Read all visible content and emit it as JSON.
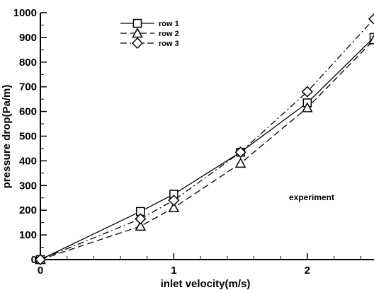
{
  "chart_data": {
    "type": "line",
    "xlabel": "inlet velocity(m/s)",
    "ylabel": "pressure drop(Pa/m)",
    "xlim": [
      0,
      2.5
    ],
    "ylim": [
      0,
      1000
    ],
    "x_ticks": [
      0,
      1,
      2
    ],
    "y_ticks": [
      0,
      100,
      200,
      300,
      400,
      500,
      600,
      700,
      800,
      900,
      1000
    ],
    "grid": false,
    "legend_position": "top-left",
    "annotation": "experiment",
    "series": [
      {
        "name": "row 1",
        "marker": "square",
        "line_style": "solid",
        "x": [
          0,
          0.75,
          1.0,
          1.5,
          2.0,
          2.5
        ],
        "y": [
          0,
          195,
          265,
          435,
          635,
          900
        ]
      },
      {
        "name": "row 2",
        "marker": "triangle",
        "line_style": "dashed",
        "x": [
          0,
          0.75,
          1.0,
          1.5,
          2.0,
          2.5
        ],
        "y": [
          0,
          135,
          210,
          390,
          615,
          890
        ]
      },
      {
        "name": "row 3",
        "marker": "diamond",
        "line_style": "dashdot",
        "x": [
          0,
          0.75,
          1.0,
          1.5,
          2.0,
          2.5
        ],
        "y": [
          0,
          165,
          240,
          435,
          680,
          975
        ]
      }
    ]
  }
}
